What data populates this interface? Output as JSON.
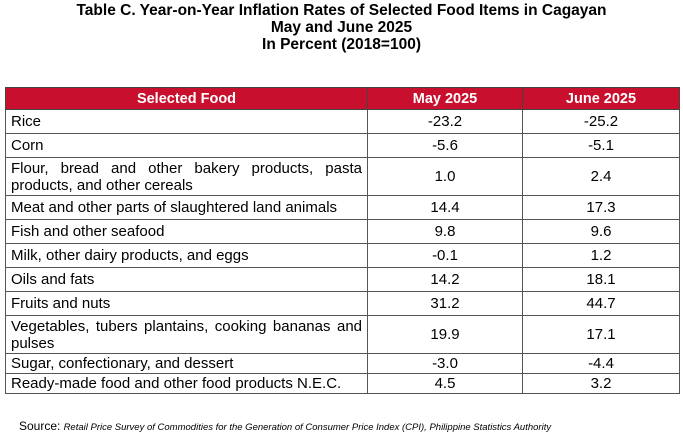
{
  "title": {
    "line1": "Table C. Year-on-Year Inflation Rates of Selected Food Items in Cagayan",
    "line2": "May and June 2025",
    "line3": "In Percent (2018=100)"
  },
  "table": {
    "headers": [
      "Selected Food",
      "May 2025",
      "June 2025"
    ],
    "rows": [
      {
        "food": "Rice",
        "may": "-23.2",
        "june": "-25.2"
      },
      {
        "food": "Corn",
        "may": "-5.6",
        "june": "-5.1"
      },
      {
        "food": "Flour, bread and other bakery products, pasta products, and other cereals",
        "may": "1.0",
        "june": "2.4"
      },
      {
        "food": "Meat and other parts of slaughtered land animals",
        "may": "14.4",
        "june": "17.3"
      },
      {
        "food": "Fish and other seafood",
        "may": "9.8",
        "june": "9.6"
      },
      {
        "food": "Milk, other dairy products, and eggs",
        "may": "-0.1",
        "june": "1.2"
      },
      {
        "food": "Oils and fats",
        "may": "14.2",
        "june": "18.1"
      },
      {
        "food": "Fruits and nuts",
        "may": "31.2",
        "june": "44.7"
      },
      {
        "food": "Vegetables, tubers plantains, cooking bananas and pulses",
        "may": "19.9",
        "june": "17.1"
      },
      {
        "food": "Sugar, confectionary, and dessert",
        "may": "-3.0",
        "june": "-4.4"
      },
      {
        "food": "Ready-made food and other food products N.E.C.",
        "may": "4.5",
        "june": "3.2"
      }
    ]
  },
  "source": {
    "label": "Source:",
    "text": "Retail Price Survey of Commodities for the Generation of Consumer Price Index (CPI), Philippine Statistics Authority"
  },
  "colors": {
    "header_bg": "#c8102e",
    "header_text": "#ffffff"
  }
}
